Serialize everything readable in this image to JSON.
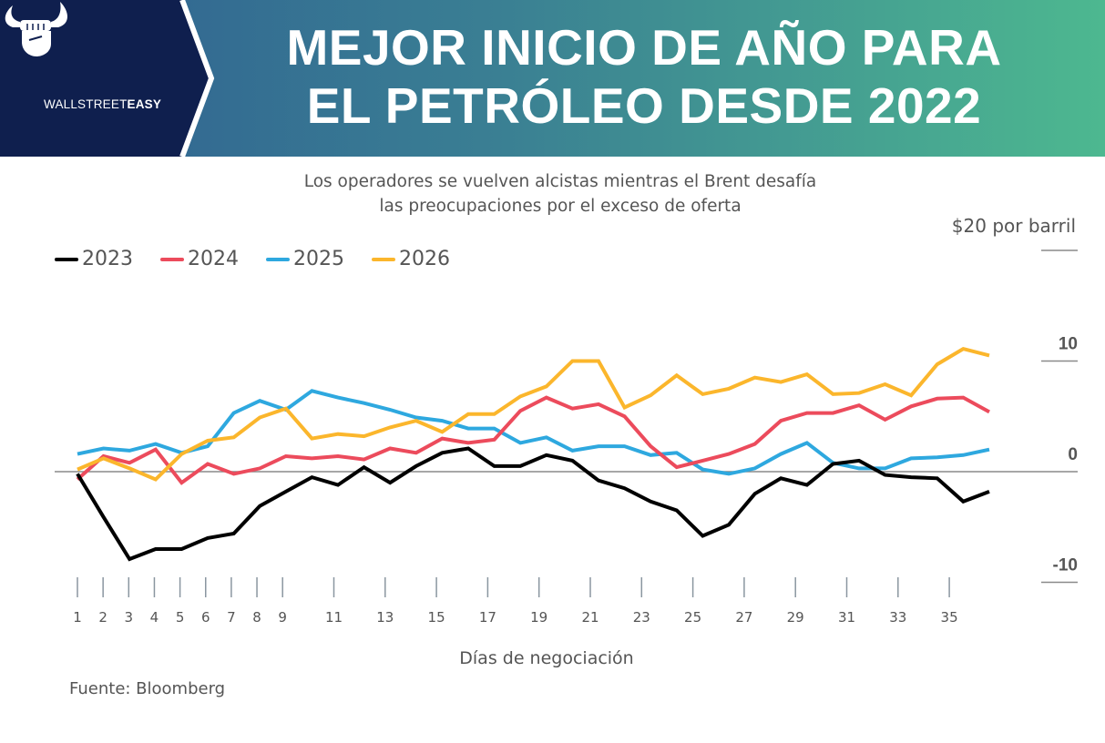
{
  "brand": {
    "name_light": "WALLSTREET",
    "name_bold": "EASY",
    "logo_icon": "bull-horns-fist-icon"
  },
  "header": {
    "title_line1": "MEJOR INICIO DE AÑO PARA",
    "title_line2": "EL PETRÓLEO DESDE 2022"
  },
  "colors": {
    "brand_navy": "#0f1f4e",
    "gradient_start": "#2f5f92",
    "gradient_end": "#4db890"
  },
  "subtitle_line1": "Los operadores se vuelven alcistas mientras el Brent desafía",
  "subtitle_line2": "las preocupaciones por el exceso de oferta",
  "source": "Fuente: Bloomberg",
  "chart_data": {
    "type": "line",
    "title": "Mejor inicio de año para el petróleo desde 2022",
    "subtitle": "Los operadores se vuelven alcistas mientras el Brent desafía las preocupaciones por el exceso de oferta",
    "xlabel": "Días de negociación",
    "ylabel": "$ por barril",
    "unit_label": "$20 por barril",
    "x": [
      1,
      2,
      3,
      4,
      5,
      6,
      7,
      8,
      9,
      10,
      11,
      12,
      13,
      14,
      15,
      16,
      17,
      18,
      19,
      20,
      21,
      22,
      23,
      24,
      25,
      26,
      27,
      28,
      29,
      30,
      31,
      32,
      33,
      34,
      35,
      36
    ],
    "x_ticks": [
      1,
      2,
      3,
      4,
      5,
      6,
      7,
      8,
      9,
      11,
      13,
      15,
      17,
      19,
      21,
      23,
      25,
      27,
      29,
      31,
      33,
      35
    ],
    "y_ticks": [
      20,
      10,
      0,
      -10
    ],
    "y_tick_labels": [
      "",
      "10",
      "0",
      "-10"
    ],
    "ylim": [
      -10,
      20
    ],
    "xlim": [
      1,
      36
    ],
    "legend_position": "top-left",
    "grid": false,
    "series": [
      {
        "name": "2023",
        "color": "#000000",
        "values": [
          -0.2,
          -4.1,
          -7.9,
          -7.0,
          -7.0,
          -6.0,
          -5.6,
          -3.1,
          -1.8,
          -0.5,
          -1.2,
          0.4,
          -1.0,
          0.5,
          1.7,
          2.1,
          0.5,
          0.5,
          1.5,
          1.0,
          -0.8,
          -1.5,
          -2.7,
          -3.5,
          -5.8,
          -4.8,
          -2.0,
          -0.6,
          -1.2,
          0.7,
          1.0,
          -0.3,
          -0.5,
          -0.6,
          -2.7,
          -1.8
        ]
      },
      {
        "name": "2024",
        "color": "#ec4b5c",
        "values": [
          -0.7,
          1.4,
          0.8,
          2.0,
          -1.0,
          0.7,
          -0.2,
          0.3,
          1.4,
          1.2,
          1.4,
          1.1,
          2.1,
          1.7,
          3.0,
          2.6,
          2.9,
          5.5,
          6.7,
          5.7,
          6.1,
          5.0,
          2.3,
          0.4,
          1.0,
          1.6,
          2.5,
          4.6,
          5.3,
          5.3,
          6.0,
          4.7,
          5.9,
          6.6,
          6.7,
          5.4
        ]
      },
      {
        "name": "2025",
        "color": "#2ea8df",
        "values": [
          1.6,
          2.1,
          1.9,
          2.5,
          1.7,
          2.3,
          5.3,
          6.4,
          5.6,
          7.3,
          6.7,
          6.2,
          5.6,
          4.9,
          4.6,
          3.9,
          3.9,
          2.6,
          3.1,
          1.9,
          2.3,
          2.3,
          1.5,
          1.7,
          0.2,
          -0.2,
          0.3,
          1.6,
          2.6,
          0.8,
          0.3,
          0.3,
          1.2,
          1.3,
          1.5,
          2.0
        ]
      },
      {
        "name": "2026",
        "color": "#fbb62c",
        "values": [
          0.2,
          1.2,
          0.3,
          -0.7,
          1.6,
          2.8,
          3.1,
          4.9,
          5.7,
          3.0,
          3.4,
          3.2,
          4.0,
          4.6,
          3.6,
          5.2,
          5.2,
          6.8,
          7.7,
          10.0,
          10.0,
          5.8,
          6.9,
          8.7,
          7.0,
          7.5,
          8.5,
          8.1,
          8.8,
          7.0,
          7.1,
          7.9,
          6.9,
          9.7,
          11.1,
          10.5
        ]
      }
    ]
  }
}
